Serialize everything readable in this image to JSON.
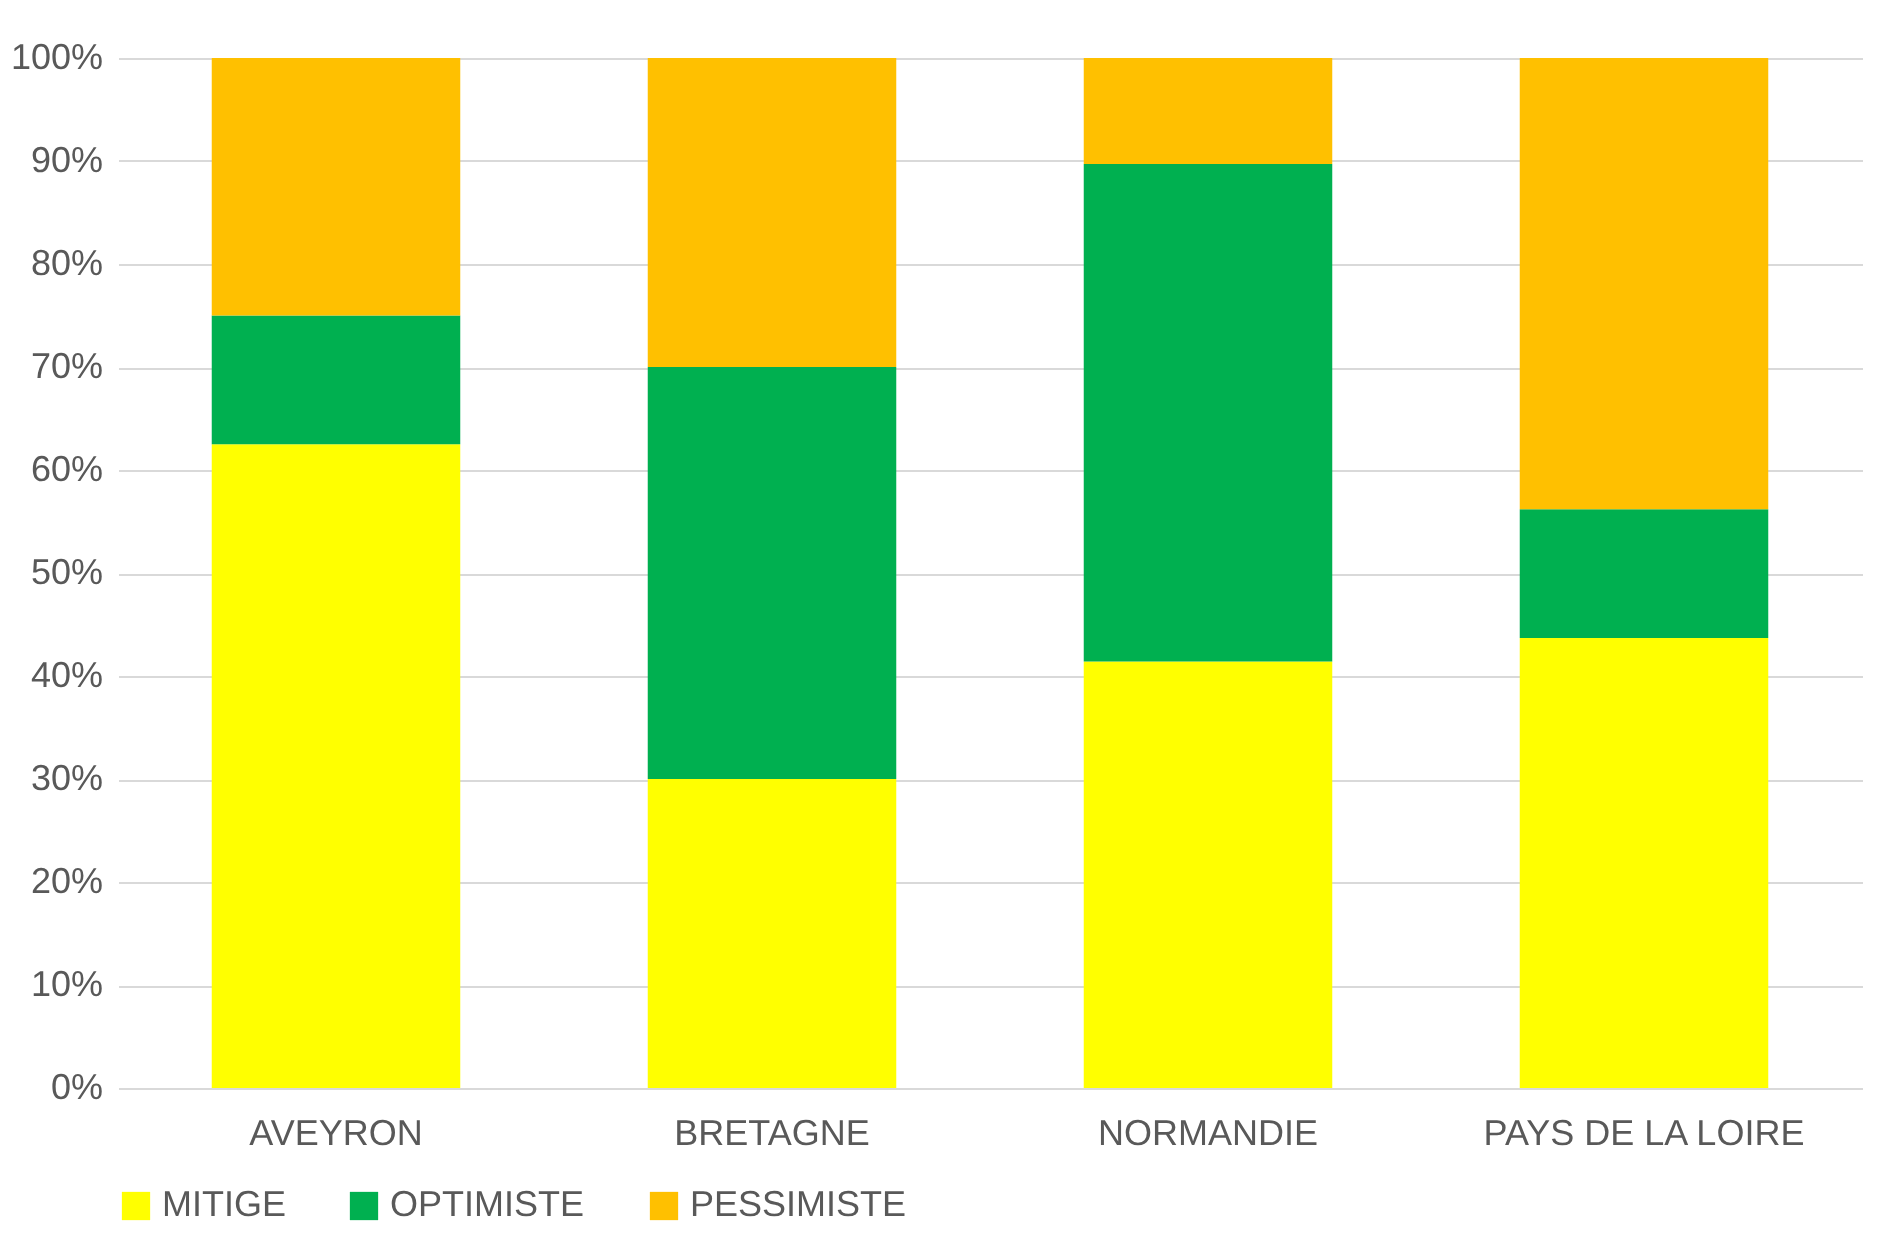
{
  "chart_data": {
    "type": "bar",
    "stacked": true,
    "categories": [
      "AVEYRON",
      "BRETAGNE",
      "NORMANDIE",
      "PAYS DE LA LOIRE"
    ],
    "series": [
      {
        "name": "MITIGE",
        "color": "#ffff00",
        "values": [
          62.5,
          30,
          41.4,
          43.7
        ]
      },
      {
        "name": "OPTIMISTE",
        "color": "#00b050",
        "values": [
          12.5,
          40,
          48.3,
          12.5
        ]
      },
      {
        "name": "PESSIMISTE",
        "color": "#ffc000",
        "values": [
          25,
          30,
          10.3,
          43.8
        ]
      }
    ],
    "ylim": [
      0,
      100
    ],
    "yticks": [
      {
        "value": 0,
        "label": "0%"
      },
      {
        "value": 10,
        "label": "10%"
      },
      {
        "value": 20,
        "label": "20%"
      },
      {
        "value": 30,
        "label": "30%"
      },
      {
        "value": 40,
        "label": "40%"
      },
      {
        "value": 50,
        "label": "50%"
      },
      {
        "value": 60,
        "label": "60%"
      },
      {
        "value": 70,
        "label": "70%"
      },
      {
        "value": 80,
        "label": "80%"
      },
      {
        "value": 90,
        "label": "90%"
      },
      {
        "value": 100,
        "label": "100%"
      }
    ],
    "grid": "y",
    "legend": "bottom"
  }
}
